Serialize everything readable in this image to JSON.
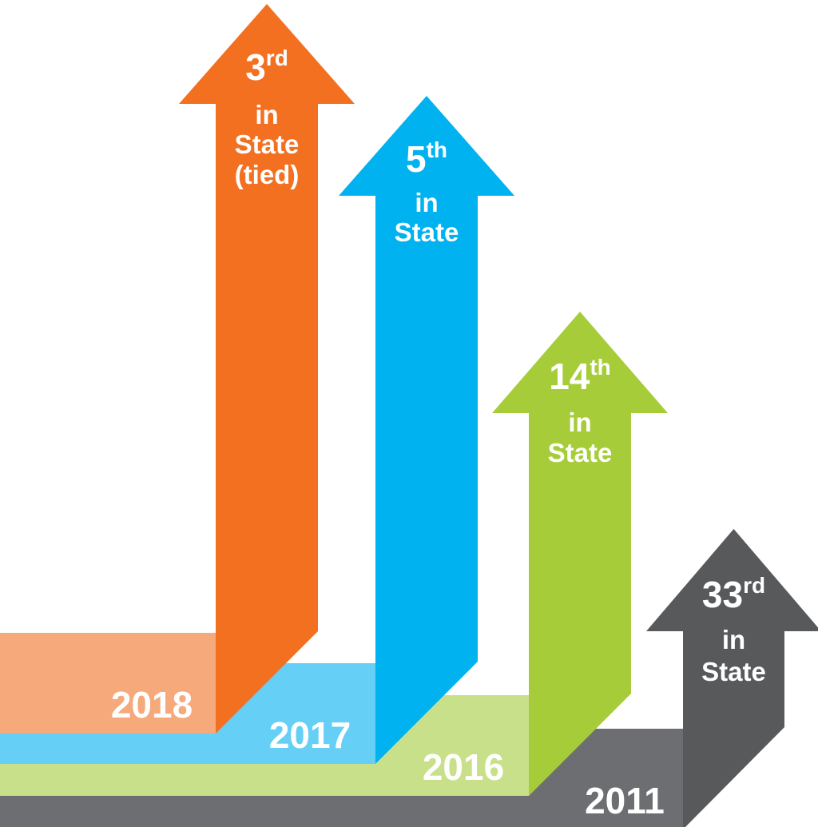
{
  "arrows": [
    {
      "year": "2018",
      "rank": "3",
      "suffix": "rd",
      "lines": [
        "in",
        "State",
        "(tied)"
      ]
    },
    {
      "year": "2017",
      "rank": "5",
      "suffix": "th",
      "lines": [
        "in",
        "State"
      ]
    },
    {
      "year": "2016",
      "rank": "14",
      "suffix": "th",
      "lines": [
        "in",
        "State"
      ]
    },
    {
      "year": "2011",
      "rank": "33",
      "suffix": "rd",
      "lines": [
        "in",
        "State"
      ]
    }
  ]
}
